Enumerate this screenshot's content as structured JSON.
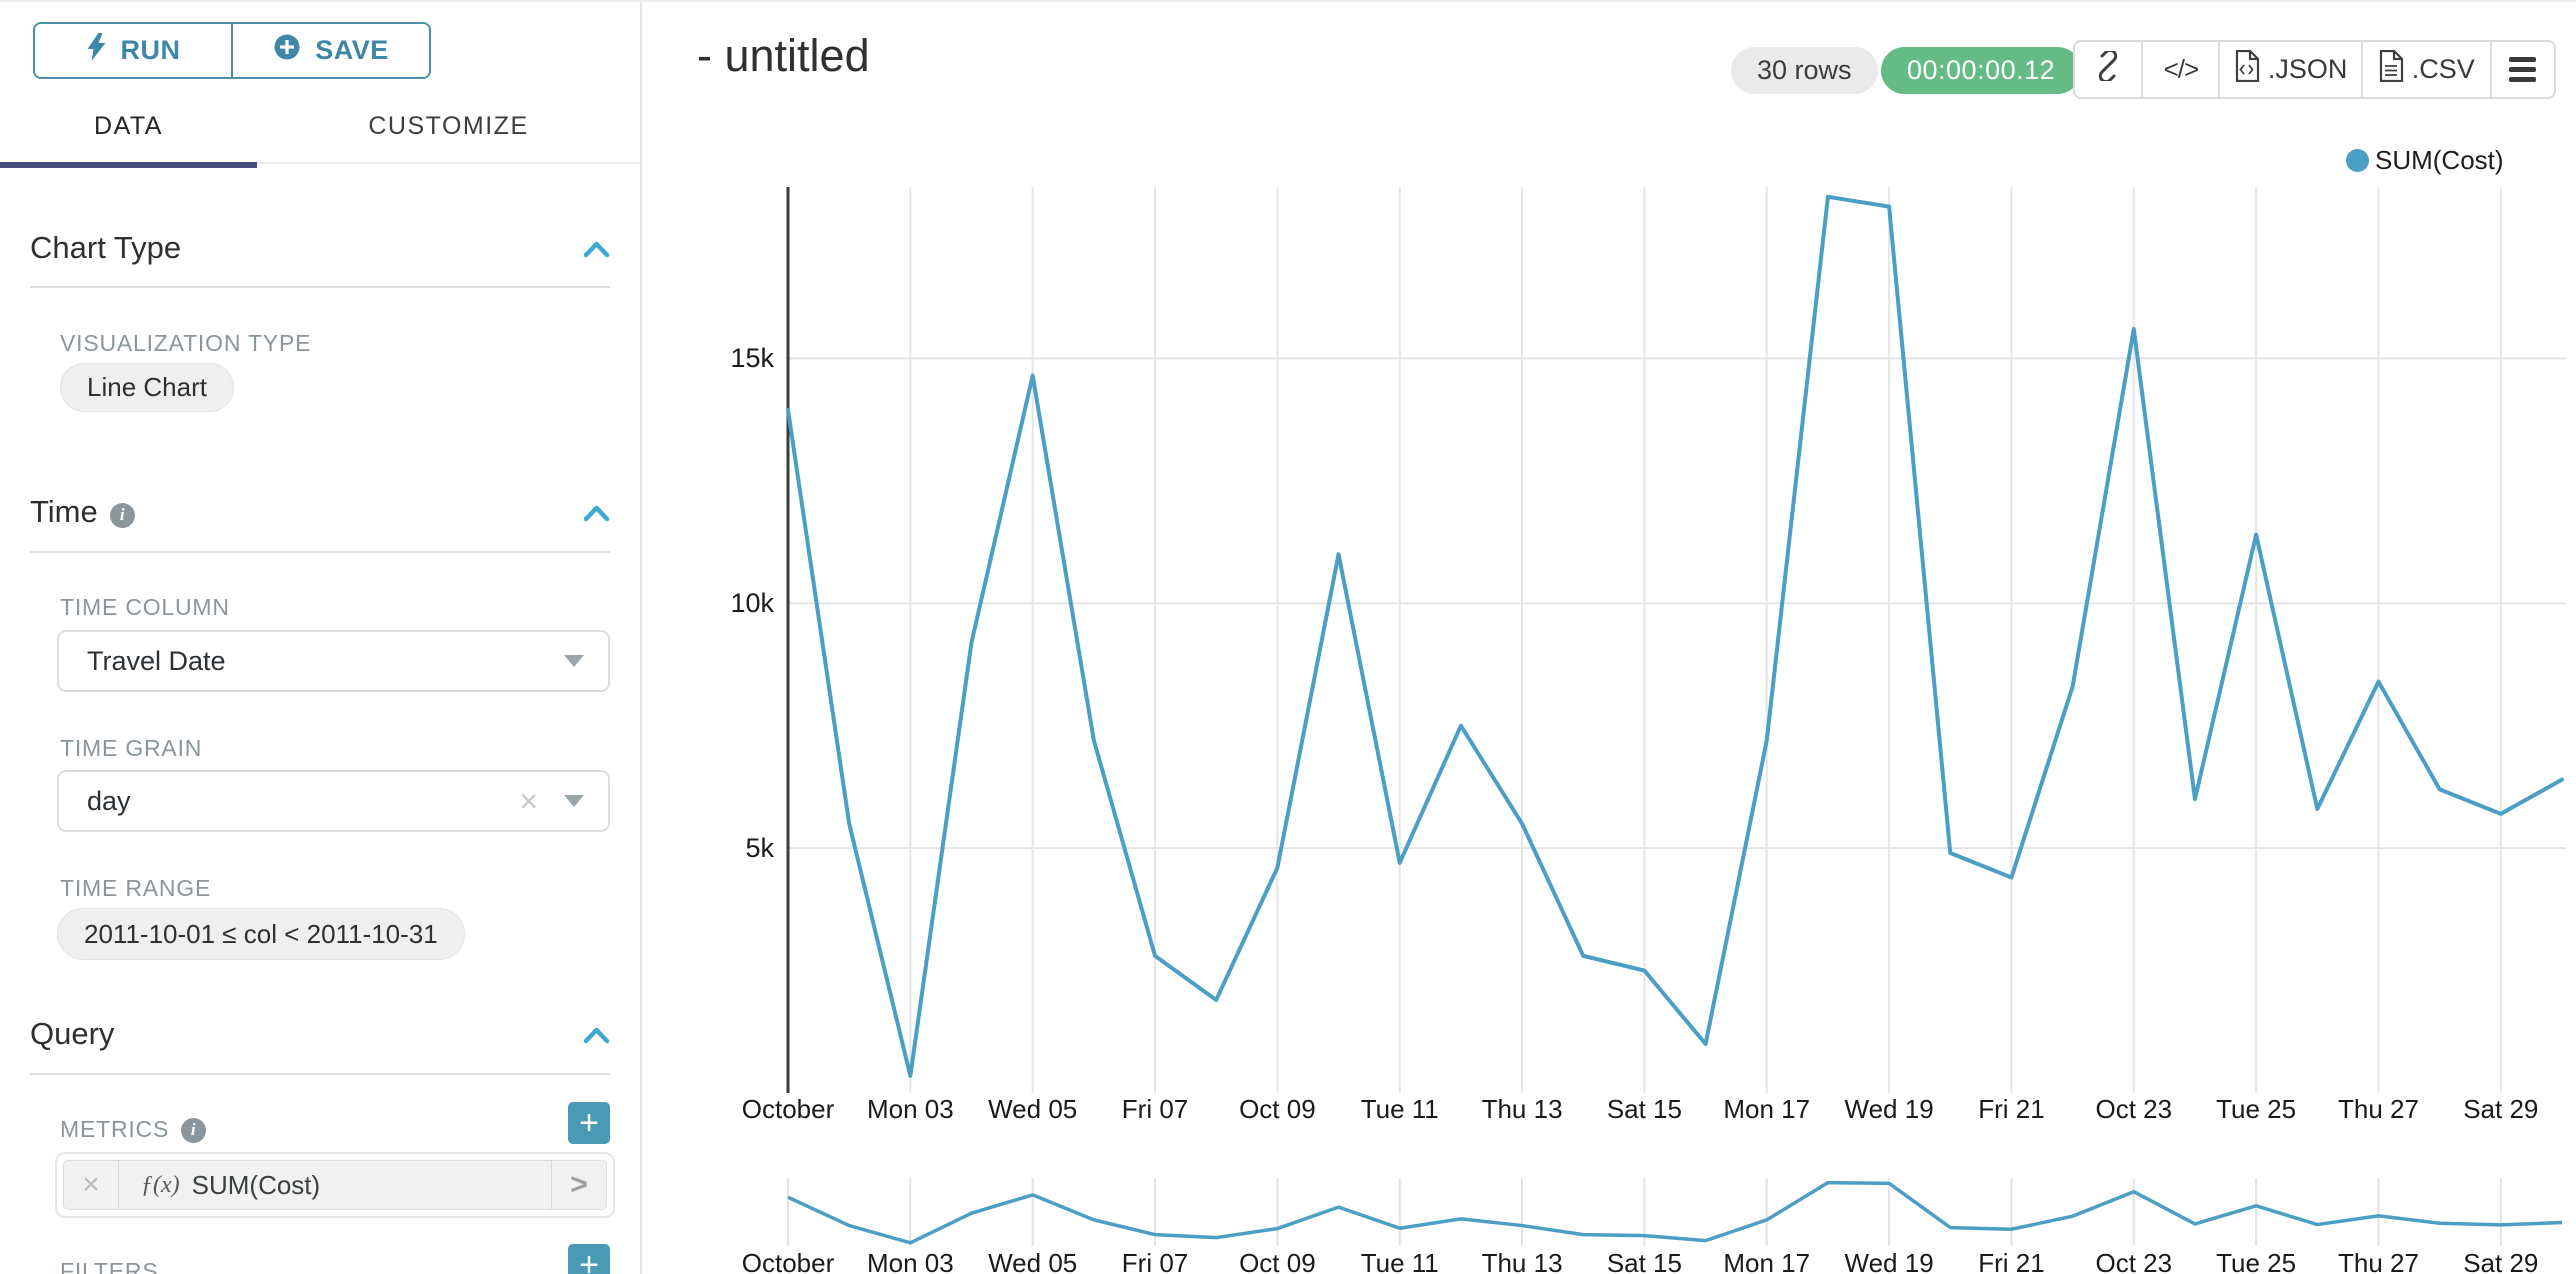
{
  "sidebar": {
    "run_label": "RUN",
    "save_label": "SAVE",
    "tabs": [
      {
        "label": "DATA",
        "active": true
      },
      {
        "label": "CUSTOMIZE",
        "active": false
      }
    ],
    "chart_type": {
      "title": "Chart Type",
      "viz_label": "VISUALIZATION TYPE",
      "viz_value": "Line Chart"
    },
    "time": {
      "title": "Time",
      "column_label": "TIME COLUMN",
      "column_value": "Travel Date",
      "grain_label": "TIME GRAIN",
      "grain_value": "day",
      "clear_glyph": "×",
      "range_label": "TIME RANGE",
      "range_value": "2011-10-01 ≤ col < 2011-10-31"
    },
    "query": {
      "title": "Query",
      "metrics_label": "METRICS",
      "metric_fx": "ƒ(x)",
      "metric_value": "SUM(Cost)",
      "metric_remove_glyph": "×",
      "metric_open_glyph": ">",
      "plus_glyph": "+",
      "filters_label": "FILTERS"
    }
  },
  "header": {
    "title": "- untitled",
    "rows_badge": "30 rows",
    "timer_badge": "00:00:00.12",
    "code_glyph": "</>",
    "json_label": ".JSON",
    "csv_label": ".CSV"
  },
  "colors": {
    "line": "#4b9ec4",
    "accent_teal": "#3e87a6",
    "tab_underline": "#454e7c",
    "timer_green": "#65bb86",
    "plus_button": "#4a9ab5",
    "chevron_blue": "#3fa8d2",
    "grid": "#e5e5e5",
    "axis": "#3b3b3b"
  },
  "chart_data": {
    "type": "line",
    "title": "- untitled",
    "xlabel": "Travel Date",
    "ylabel": "SUM(Cost)",
    "x": [
      "2011-10-01",
      "2011-10-02",
      "2011-10-03",
      "2011-10-04",
      "2011-10-05",
      "2011-10-06",
      "2011-10-07",
      "2011-10-08",
      "2011-10-09",
      "2011-10-10",
      "2011-10-11",
      "2011-10-12",
      "2011-10-13",
      "2011-10-14",
      "2011-10-15",
      "2011-10-16",
      "2011-10-17",
      "2011-10-18",
      "2011-10-19",
      "2011-10-20",
      "2011-10-21",
      "2011-10-22",
      "2011-10-23",
      "2011-10-24",
      "2011-10-25",
      "2011-10-26",
      "2011-10-27",
      "2011-10-28",
      "2011-10-29",
      "2011-10-30"
    ],
    "series": [
      {
        "name": "SUM(Cost)",
        "values": [
          13950,
          5500,
          350,
          9200,
          14650,
          7200,
          2800,
          1900,
          4600,
          11000,
          4700,
          7500,
          5500,
          2800,
          2500,
          1000,
          7200,
          18300,
          18100,
          4900,
          4400,
          8300,
          15600,
          6000,
          11400,
          5800,
          8400,
          6200,
          5700,
          6400
        ]
      }
    ],
    "x_tick_labels": [
      "October",
      "Mon 03",
      "Wed 05",
      "Fri 07",
      "Oct 09",
      "Tue 11",
      "Thu 13",
      "Sat 15",
      "Mon 17",
      "Wed 19",
      "Fri 21",
      "Oct 23",
      "Tue 25",
      "Thu 27",
      "Sat 29"
    ],
    "x_tick_indices": [
      0,
      2,
      4,
      6,
      8,
      10,
      12,
      14,
      16,
      18,
      20,
      22,
      24,
      26,
      28
    ],
    "y_ticks": [
      5000,
      10000,
      15000
    ],
    "y_tick_labels": [
      "5k",
      "10k",
      "15k"
    ],
    "ylim": [
      0,
      18500
    ],
    "grid": true,
    "legend_position": "top-right",
    "has_range_brush": true
  }
}
